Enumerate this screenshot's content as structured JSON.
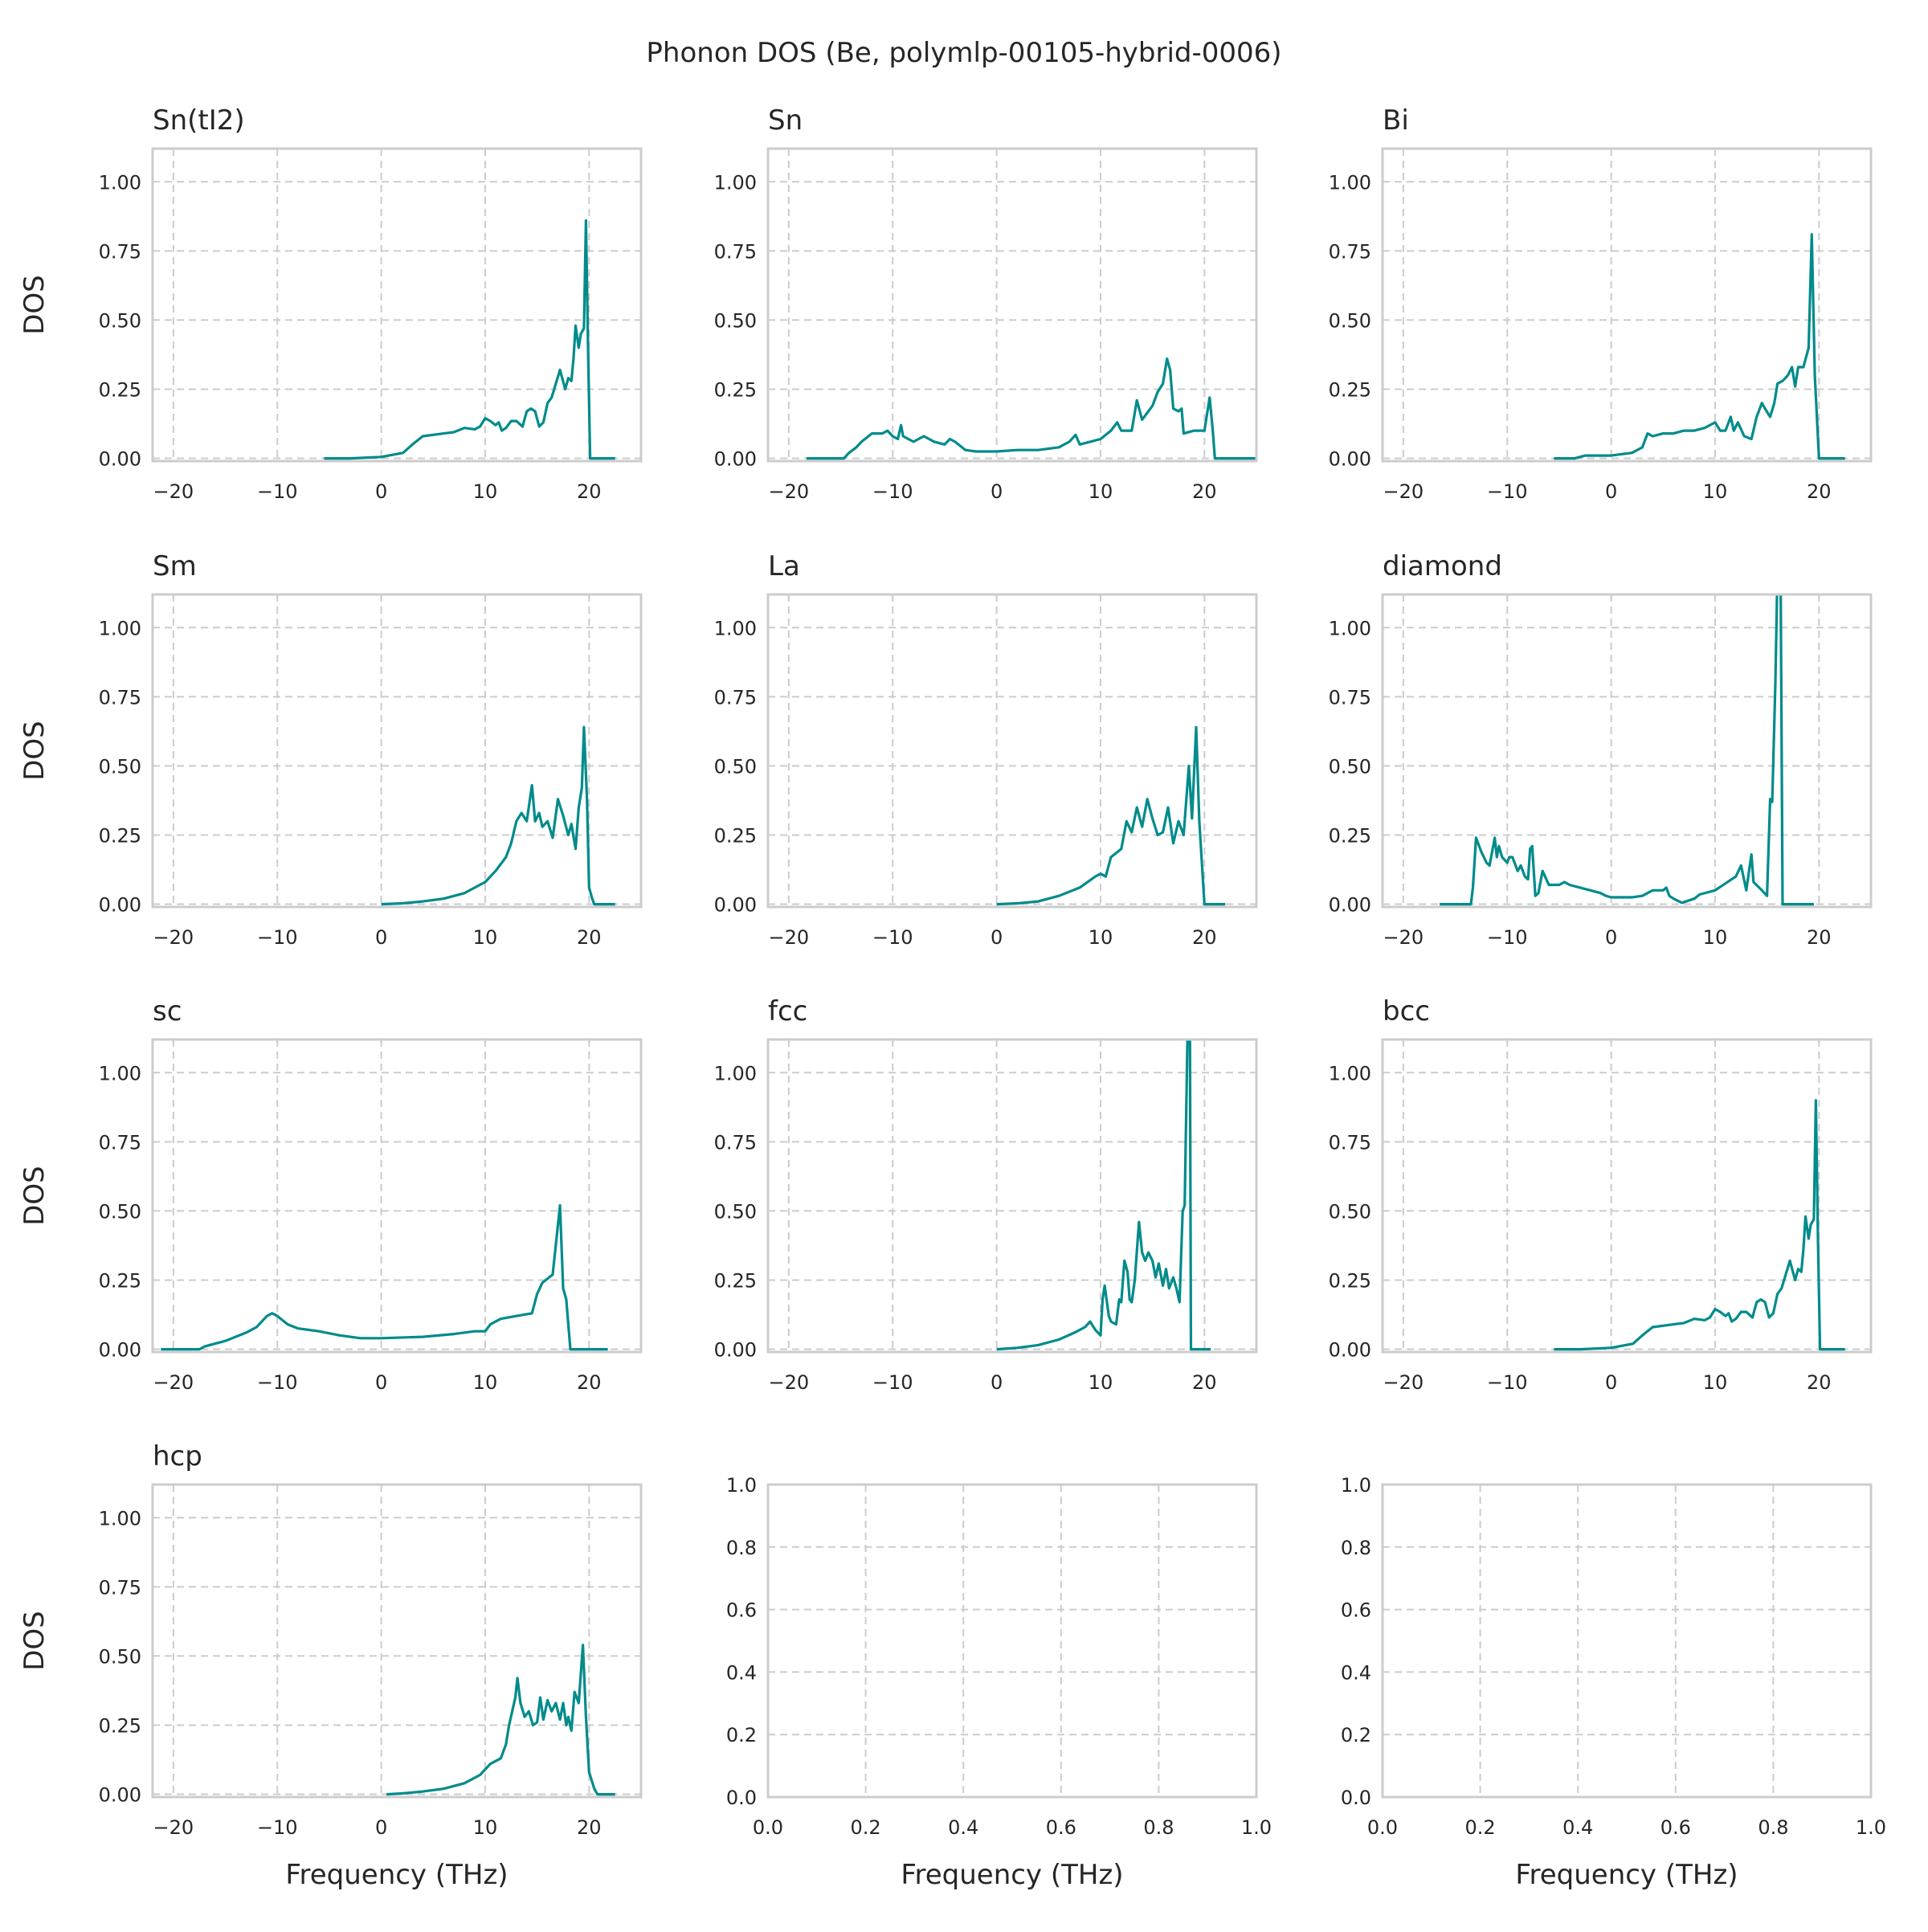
{
  "figure": {
    "title": "Phonon DOS (Be, polymlp-00105-hybrid-0006)",
    "line_color": "#008b8b",
    "grid_color": "#cccccc",
    "spine_color": "#cccccc",
    "grid": true,
    "grid_style": "dashed",
    "layout": "4 rows x 3 columns"
  },
  "chart_data": [
    {
      "type": "line",
      "title": "Sn(tI2)",
      "xlabel": "",
      "ylabel": "DOS",
      "xlim": [
        -22,
        25
      ],
      "ylim": [
        -0.01,
        1.12
      ],
      "xticks": [
        "−20",
        "−10",
        "0",
        "10",
        "20"
      ],
      "xtick_values": [
        -20,
        -10,
        0,
        10,
        20
      ],
      "yticks": [
        "0.00",
        "0.25",
        "0.50",
        "0.75",
        "1.00"
      ],
      "ytick_values": [
        0,
        0.25,
        0.5,
        0.75,
        1
      ],
      "x": [
        -5.5,
        -3,
        0,
        2.1,
        3,
        4,
        5,
        6,
        7,
        8,
        9,
        9.5,
        10,
        10.5,
        11,
        11.3,
        11.6,
        12,
        12.5,
        13,
        13.6,
        14,
        14.4,
        14.8,
        15.2,
        15.6,
        16,
        16.4,
        16.8,
        17.2,
        17.7,
        18,
        18.3,
        18.5,
        18.7,
        19,
        19.2,
        19.5,
        19.7,
        19.9,
        20.1,
        22.5
      ],
      "y": [
        0,
        0,
        0.005,
        0.02,
        0.05,
        0.08,
        0.085,
        0.09,
        0.095,
        0.11,
        0.105,
        0.115,
        0.145,
        0.135,
        0.12,
        0.13,
        0.1,
        0.11,
        0.135,
        0.135,
        0.115,
        0.17,
        0.18,
        0.17,
        0.115,
        0.13,
        0.2,
        0.22,
        0.27,
        0.32,
        0.25,
        0.29,
        0.28,
        0.36,
        0.48,
        0.4,
        0.45,
        0.47,
        0.86,
        0.4,
        0,
        0
      ]
    },
    {
      "type": "line",
      "title": "Sn",
      "xlabel": "",
      "ylabel": "",
      "xlim": [
        -22,
        25
      ],
      "ylim": [
        -0.01,
        1.12
      ],
      "xticks": [
        "−20",
        "−10",
        "0",
        "10",
        "20"
      ],
      "xtick_values": [
        -20,
        -10,
        0,
        10,
        20
      ],
      "yticks": [
        "0.00",
        "0.25",
        "0.50",
        "0.75",
        "1.00"
      ],
      "ytick_values": [
        0,
        0.25,
        0.5,
        0.75,
        1
      ],
      "x": [
        -18.3,
        -14.7,
        -14.2,
        -13.5,
        -13,
        -12,
        -11,
        -10.5,
        -10,
        -9.5,
        -9.2,
        -9,
        -8,
        -7,
        -6,
        -5,
        -4.5,
        -4,
        -3,
        -2,
        0,
        2,
        4,
        6,
        7,
        7.6,
        8,
        9,
        10,
        11,
        11.6,
        12,
        13,
        13.5,
        14,
        15,
        15.5,
        16,
        16.4,
        16.7,
        17,
        17.5,
        17.8,
        18,
        19,
        20,
        20.5,
        20.8,
        21,
        25
      ],
      "y": [
        0,
        0,
        0.02,
        0.04,
        0.06,
        0.09,
        0.09,
        0.1,
        0.08,
        0.07,
        0.12,
        0.08,
        0.06,
        0.08,
        0.06,
        0.05,
        0.07,
        0.06,
        0.03,
        0.025,
        0.025,
        0.03,
        0.03,
        0.04,
        0.06,
        0.085,
        0.05,
        0.06,
        0.07,
        0.1,
        0.13,
        0.1,
        0.1,
        0.21,
        0.14,
        0.19,
        0.24,
        0.27,
        0.36,
        0.32,
        0.18,
        0.17,
        0.18,
        0.09,
        0.1,
        0.1,
        0.22,
        0.1,
        0,
        0
      ]
    },
    {
      "type": "line",
      "title": "Bi",
      "xlabel": "",
      "ylabel": "",
      "xlim": [
        -22,
        25
      ],
      "ylim": [
        -0.01,
        1.12
      ],
      "xticks": [
        "−20",
        "−10",
        "0",
        "10",
        "20"
      ],
      "xtick_values": [
        -20,
        -10,
        0,
        10,
        20
      ],
      "yticks": [
        "0.00",
        "0.25",
        "0.50",
        "0.75",
        "1.00"
      ],
      "ytick_values": [
        0,
        0.25,
        0.5,
        0.75,
        1
      ],
      "x": [
        -5.5,
        -3.5,
        -2.5,
        0,
        2,
        3,
        3.5,
        4,
        5,
        6,
        7,
        8,
        9,
        10,
        10.5,
        11,
        11.5,
        11.8,
        12.2,
        12.8,
        13.5,
        14,
        14.5,
        14.8,
        15.3,
        15.7,
        16,
        16.5,
        17,
        17.4,
        17.7,
        18,
        18.5,
        19,
        19.3,
        19.6,
        20,
        22.5
      ],
      "y": [
        0,
        0,
        0.01,
        0.01,
        0.02,
        0.04,
        0.09,
        0.08,
        0.09,
        0.09,
        0.1,
        0.1,
        0.11,
        0.13,
        0.1,
        0.1,
        0.15,
        0.1,
        0.13,
        0.08,
        0.07,
        0.15,
        0.2,
        0.18,
        0.15,
        0.2,
        0.27,
        0.28,
        0.3,
        0.33,
        0.26,
        0.33,
        0.33,
        0.4,
        0.81,
        0.3,
        0,
        0
      ]
    },
    {
      "type": "line",
      "title": "Sm",
      "xlabel": "",
      "ylabel": "DOS",
      "xlim": [
        -22,
        25
      ],
      "ylim": [
        -0.01,
        1.12
      ],
      "xticks": [
        "−20",
        "−10",
        "0",
        "10",
        "20"
      ],
      "xtick_values": [
        -20,
        -10,
        0,
        10,
        20
      ],
      "yticks": [
        "0.00",
        "0.25",
        "0.50",
        "0.75",
        "1.00"
      ],
      "ytick_values": [
        0,
        0.25,
        0.5,
        0.75,
        1
      ],
      "x": [
        0,
        2,
        4,
        6,
        8,
        9,
        10,
        11,
        12,
        12.5,
        13,
        13.5,
        14,
        14.5,
        14.8,
        15.2,
        15.5,
        16,
        16.5,
        17,
        17.5,
        18,
        18.3,
        18.7,
        19,
        19.3,
        19.5,
        19.8,
        20,
        20.3,
        20.5,
        22.5
      ],
      "y": [
        0,
        0.003,
        0.01,
        0.02,
        0.04,
        0.06,
        0.08,
        0.12,
        0.17,
        0.22,
        0.3,
        0.33,
        0.3,
        0.43,
        0.3,
        0.33,
        0.28,
        0.3,
        0.24,
        0.38,
        0.32,
        0.25,
        0.29,
        0.2,
        0.35,
        0.42,
        0.64,
        0.38,
        0.06,
        0.02,
        0,
        0
      ]
    },
    {
      "type": "line",
      "title": "La",
      "xlabel": "",
      "ylabel": "",
      "xlim": [
        -22,
        25
      ],
      "ylim": [
        -0.01,
        1.12
      ],
      "xticks": [
        "−20",
        "−10",
        "0",
        "10",
        "20"
      ],
      "xtick_values": [
        -20,
        -10,
        0,
        10,
        20
      ],
      "yticks": [
        "0.00",
        "0.25",
        "0.50",
        "0.75",
        "1.00"
      ],
      "ytick_values": [
        0,
        0.25,
        0.5,
        0.75,
        1
      ],
      "x": [
        0,
        2,
        4,
        6,
        8,
        9.5,
        10,
        10.5,
        11,
        12,
        12.5,
        13,
        13.5,
        14,
        14.5,
        15,
        15.5,
        16,
        16.5,
        17,
        17.5,
        18,
        18.5,
        18.8,
        19.2,
        19.5,
        20,
        22
      ],
      "y": [
        0,
        0.003,
        0.01,
        0.03,
        0.06,
        0.1,
        0.11,
        0.1,
        0.17,
        0.2,
        0.3,
        0.26,
        0.35,
        0.28,
        0.38,
        0.31,
        0.25,
        0.26,
        0.35,
        0.22,
        0.3,
        0.25,
        0.5,
        0.31,
        0.64,
        0.3,
        0,
        0
      ]
    },
    {
      "type": "line",
      "title": "diamond",
      "xlabel": "",
      "ylabel": "",
      "xlim": [
        -22,
        25
      ],
      "ylim": [
        -0.01,
        1.12
      ],
      "xticks": [
        "−20",
        "−10",
        "0",
        "10",
        "20"
      ],
      "xtick_values": [
        -20,
        -10,
        0,
        10,
        20
      ],
      "yticks": [
        "0.00",
        "0.25",
        "0.50",
        "0.75",
        "1.00"
      ],
      "ytick_values": [
        0,
        0.25,
        0.5,
        0.75,
        1
      ],
      "x": [
        -16.5,
        -13.5,
        -13.3,
        -13,
        -12.5,
        -12,
        -11.7,
        -11.2,
        -11,
        -10.8,
        -10.5,
        -10,
        -9.8,
        -9.5,
        -9,
        -8.7,
        -8.3,
        -8,
        -7.8,
        -7.6,
        -7.3,
        -7,
        -6.6,
        -6,
        -5,
        -4.5,
        -4,
        -3,
        -2,
        -1,
        -0.5,
        0,
        2,
        3,
        4,
        5,
        5.3,
        5.6,
        6,
        6.8,
        8,
        8.5,
        10,
        12,
        12.5,
        13,
        13.5,
        13.7,
        14.5,
        15,
        15.3,
        15.5,
        15.8,
        16,
        16.3,
        16.5,
        19.5
      ],
      "y": [
        0,
        0,
        0.06,
        0.24,
        0.19,
        0.15,
        0.14,
        0.24,
        0.17,
        0.21,
        0.17,
        0.15,
        0.17,
        0.17,
        0.12,
        0.14,
        0.1,
        0.09,
        0.2,
        0.21,
        0.03,
        0.04,
        0.12,
        0.07,
        0.07,
        0.08,
        0.07,
        0.06,
        0.05,
        0.04,
        0.03,
        0.025,
        0.025,
        0.03,
        0.05,
        0.05,
        0.06,
        0.03,
        0.02,
        0.005,
        0.02,
        0.035,
        0.05,
        0.1,
        0.14,
        0.05,
        0.18,
        0.08,
        0.05,
        0.03,
        0.38,
        0.37,
        0.8,
        1.2,
        1.2,
        0,
        0
      ]
    },
    {
      "type": "line",
      "title": "sc",
      "xlabel": "",
      "ylabel": "DOS",
      "xlim": [
        -22,
        25
      ],
      "ylim": [
        -0.01,
        1.12
      ],
      "xticks": [
        "−20",
        "−10",
        "0",
        "10",
        "20"
      ],
      "xtick_values": [
        -20,
        -10,
        0,
        10,
        20
      ],
      "yticks": [
        "0.00",
        "0.25",
        "0.50",
        "0.75",
        "1.00"
      ],
      "ytick_values": [
        0,
        0.25,
        0.5,
        0.75,
        1
      ],
      "x": [
        -21.2,
        -17.5,
        -17,
        -15,
        -13,
        -12,
        -11,
        -10.5,
        -10,
        -9,
        -8,
        -6,
        -4,
        -2,
        0,
        4,
        7,
        9,
        10,
        10.5,
        11.5,
        13,
        14.5,
        15,
        15.5,
        16.5,
        17.2,
        17.5,
        17.8,
        18.2,
        21.8
      ],
      "y": [
        0,
        0,
        0.01,
        0.03,
        0.06,
        0.08,
        0.12,
        0.13,
        0.12,
        0.09,
        0.075,
        0.065,
        0.05,
        0.04,
        0.04,
        0.045,
        0.055,
        0.065,
        0.065,
        0.09,
        0.11,
        0.12,
        0.13,
        0.2,
        0.24,
        0.27,
        0.52,
        0.22,
        0.18,
        0,
        0
      ]
    },
    {
      "type": "line",
      "title": "fcc",
      "xlabel": "",
      "ylabel": "",
      "xlim": [
        -22,
        25
      ],
      "ylim": [
        -0.01,
        1.12
      ],
      "xticks": [
        "−20",
        "−10",
        "0",
        "10",
        "20"
      ],
      "xtick_values": [
        -20,
        -10,
        0,
        10,
        20
      ],
      "yticks": [
        "0.00",
        "0.25",
        "0.50",
        "0.75",
        "1.00"
      ],
      "ytick_values": [
        0,
        0.25,
        0.5,
        0.75,
        1
      ],
      "x": [
        0,
        2,
        4,
        6,
        7.5,
        8.5,
        9,
        9.5,
        10,
        10.2,
        10.4,
        10.8,
        11,
        11.5,
        11.8,
        12,
        12.3,
        12.6,
        12.8,
        13,
        13.3,
        13.7,
        14,
        14.3,
        14.6,
        15,
        15.3,
        15.6,
        16,
        16.3,
        16.6,
        17,
        17.3,
        17.6,
        17.9,
        18.1,
        18.4,
        18.6,
        18.7,
        20.6
      ],
      "y": [
        0,
        0.005,
        0.015,
        0.035,
        0.06,
        0.08,
        0.1,
        0.07,
        0.05,
        0.18,
        0.23,
        0.12,
        0.1,
        0.09,
        0.18,
        0.17,
        0.32,
        0.28,
        0.18,
        0.17,
        0.25,
        0.46,
        0.35,
        0.32,
        0.35,
        0.32,
        0.26,
        0.31,
        0.23,
        0.29,
        0.22,
        0.26,
        0.22,
        0.17,
        0.5,
        0.52,
        1.2,
        1.2,
        0,
        0
      ]
    },
    {
      "type": "line",
      "title": "bcc",
      "xlabel": "",
      "ylabel": "",
      "xlim": [
        -22,
        25
      ],
      "ylim": [
        -0.01,
        1.12
      ],
      "xticks": [
        "−20",
        "−10",
        "0",
        "10",
        "20"
      ],
      "xtick_values": [
        -20,
        -10,
        0,
        10,
        20
      ],
      "yticks": [
        "0.00",
        "0.25",
        "0.50",
        "0.75",
        "1.00"
      ],
      "ytick_values": [
        0,
        0.25,
        0.5,
        0.75,
        1
      ],
      "x": [
        -5.5,
        -3,
        0,
        2.1,
        3,
        4,
        5,
        6,
        7,
        8,
        9,
        9.5,
        10,
        10.5,
        11,
        11.3,
        11.6,
        12,
        12.5,
        13,
        13.6,
        14,
        14.4,
        14.8,
        15.2,
        15.6,
        16,
        16.4,
        16.8,
        17.2,
        17.7,
        18,
        18.3,
        18.5,
        18.7,
        19,
        19.2,
        19.5,
        19.7,
        19.9,
        20.1,
        22.5
      ],
      "y": [
        0,
        0,
        0.005,
        0.02,
        0.05,
        0.08,
        0.085,
        0.09,
        0.095,
        0.11,
        0.105,
        0.115,
        0.145,
        0.135,
        0.12,
        0.13,
        0.1,
        0.11,
        0.135,
        0.135,
        0.115,
        0.17,
        0.18,
        0.17,
        0.115,
        0.13,
        0.2,
        0.22,
        0.27,
        0.32,
        0.25,
        0.29,
        0.28,
        0.36,
        0.48,
        0.4,
        0.45,
        0.47,
        0.9,
        0.4,
        0,
        0
      ]
    },
    {
      "type": "line",
      "title": "hcp",
      "xlabel": "Frequency (THz)",
      "ylabel": "DOS",
      "xlim": [
        -22,
        25
      ],
      "ylim": [
        -0.01,
        1.12
      ],
      "xticks": [
        "−20",
        "−10",
        "0",
        "10",
        "20"
      ],
      "xtick_values": [
        -20,
        -10,
        0,
        10,
        20
      ],
      "yticks": [
        "0.00",
        "0.25",
        "0.50",
        "0.75",
        "1.00"
      ],
      "ytick_values": [
        0,
        0.25,
        0.5,
        0.75,
        1
      ],
      "x": [
        0.5,
        2,
        4,
        6,
        8,
        9.5,
        10,
        10.5,
        11.5,
        12,
        12.3,
        12.6,
        12.9,
        13.1,
        13.4,
        13.8,
        14.2,
        14.6,
        15,
        15.3,
        15.6,
        16,
        16.4,
        16.8,
        17.2,
        17.5,
        17.8,
        18,
        18.3,
        18.6,
        19,
        19.4,
        19.7,
        20,
        20.5,
        20.8,
        22.5
      ],
      "y": [
        0,
        0.003,
        0.01,
        0.02,
        0.04,
        0.07,
        0.09,
        0.11,
        0.13,
        0.18,
        0.25,
        0.3,
        0.35,
        0.42,
        0.33,
        0.28,
        0.3,
        0.25,
        0.26,
        0.35,
        0.27,
        0.34,
        0.3,
        0.33,
        0.27,
        0.33,
        0.25,
        0.28,
        0.23,
        0.37,
        0.33,
        0.54,
        0.28,
        0.08,
        0.02,
        0,
        0
      ]
    },
    {
      "type": "line",
      "title": "",
      "xlabel": "Frequency (THz)",
      "ylabel": "",
      "xlim": [
        0,
        1
      ],
      "ylim": [
        0,
        1
      ],
      "xticks": [
        "0.0",
        "0.2",
        "0.4",
        "0.6",
        "0.8",
        "1.0"
      ],
      "xtick_values": [
        0,
        0.2,
        0.4,
        0.6,
        0.8,
        1
      ],
      "yticks": [
        "0.0",
        "0.2",
        "0.4",
        "0.6",
        "0.8",
        "1.0"
      ],
      "ytick_values": [
        0,
        0.2,
        0.4,
        0.6,
        0.8,
        1
      ],
      "x": [],
      "y": []
    },
    {
      "type": "line",
      "title": "",
      "xlabel": "Frequency (THz)",
      "ylabel": "",
      "xlim": [
        0,
        1
      ],
      "ylim": [
        0,
        1
      ],
      "xticks": [
        "0.0",
        "0.2",
        "0.4",
        "0.6",
        "0.8",
        "1.0"
      ],
      "xtick_values": [
        0,
        0.2,
        0.4,
        0.6,
        0.8,
        1
      ],
      "yticks": [
        "0.0",
        "0.2",
        "0.4",
        "0.6",
        "0.8",
        "1.0"
      ],
      "ytick_values": [
        0,
        0.2,
        0.4,
        0.6,
        0.8,
        1
      ],
      "x": [],
      "y": []
    }
  ]
}
